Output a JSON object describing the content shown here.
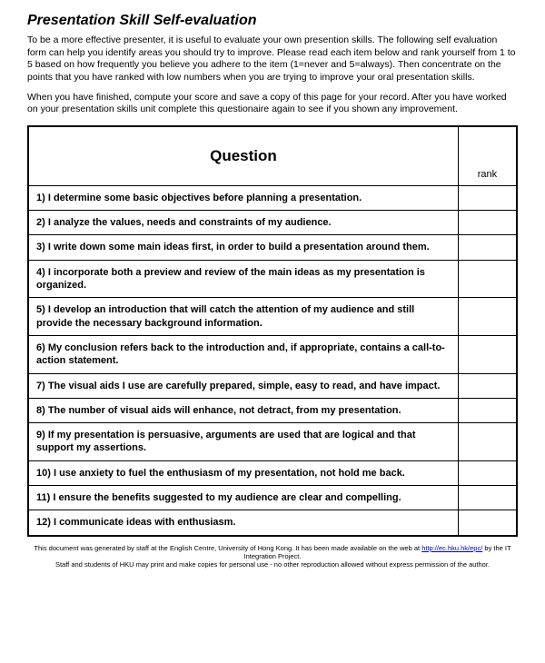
{
  "title": "Presentation Skill Self-evaluation",
  "intro1": "To be a more effective presenter, it is useful to evaluate your own presention skills. The following self evaluation form can help you identify areas you should try to improve. Please read each item below and rank yourself from 1 to 5 based on how frequently you believe you adhere to the item (1=never and 5=always). Then concentrate on the points that you have ranked with low numbers when you are trying to improve your oral presentation skills.",
  "intro2": "When you have finished, compute your score and save a copy of this page for your record. After you have worked on your presentation skills unit complete this questionaire again to see if you shown any improvement.",
  "table": {
    "header_question": "Question",
    "header_rank": "rank",
    "columns": [
      "Question",
      "rank"
    ],
    "col_widths": [
      "88%",
      "12%"
    ],
    "border_color": "#000000",
    "rows": [
      {
        "q": "1) I determine some basic objectives before planning a presentation."
      },
      {
        "q": "2) I analyze the values, needs and constraints of my audience."
      },
      {
        "q": "3) I write down some main ideas first, in order to build a presentation around them."
      },
      {
        "q": "4) I incorporate both a preview and review of the main ideas as my presentation is organized."
      },
      {
        "q": "5) I develop an introduction that will catch the attention of my audience and still provide the necessary background information."
      },
      {
        "q": "6) My conclusion refers back to the introduction and, if appropriate, contains a call-to-action statement."
      },
      {
        "q": "7) The visual aids I use are carefully prepared, simple, easy to read, and have impact."
      },
      {
        "q": "8) The number of visual aids will enhance, not detract, from my presentation."
      },
      {
        "q": "9) If my presentation is persuasive, arguments are used that are logical and that support my assertions."
      },
      {
        "q": "10) I use anxiety to fuel the enthusiasm of my presentation, not hold me back."
      },
      {
        "q": "11) I ensure the benefits suggested to my audience are clear and compelling."
      },
      {
        "q": "12) I communicate ideas with enthusiasm."
      }
    ]
  },
  "footer": {
    "line1_pre": "This document was generated by staff at the English Centre, University of Hong Kong. It has been made available on the web at ",
    "link_text": "http://ec.hku.hk/epc/",
    "line1_post": " by the IT Integration Project.",
    "line2": "Staff and students of HKU may print and make copies for personal use - no other reproduction allowed without express permission of the author."
  },
  "styles": {
    "background_color": "#ffffff",
    "text_color": "#000000",
    "link_color": "#0000cc",
    "title_fontsize": 16,
    "body_fontsize": 10.5,
    "cell_fontsize": 11,
    "footer_fontsize": 7.5,
    "font_family": "Arial"
  }
}
